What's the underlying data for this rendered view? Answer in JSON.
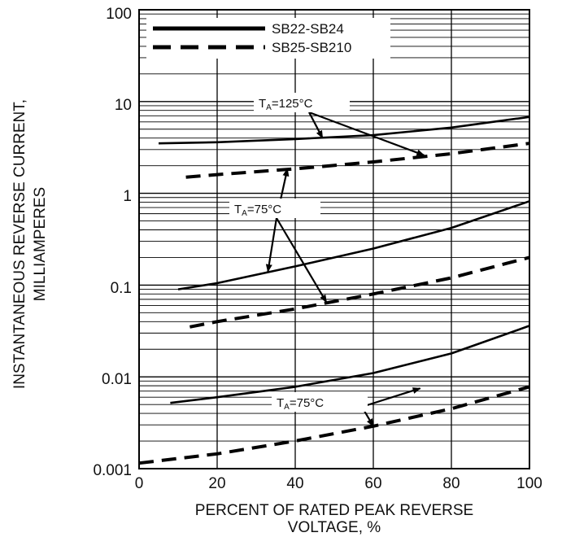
{
  "chart_data": {
    "type": "line",
    "title": "",
    "xlabel_line1": "PERCENT OF RATED PEAK REVERSE",
    "xlabel_line2": "VOLTAGE, %",
    "ylabel_line1": "INSTANTANEOUS REVERSE CURRENT,",
    "ylabel_line2": "MILLIAMPERES",
    "xlim": [
      0,
      100
    ],
    "ylim": [
      0.001,
      100
    ],
    "y_scale": "log",
    "grid": true,
    "legend_position": "top-left",
    "x_ticks": [
      "0",
      "20",
      "40",
      "60",
      "80",
      "100"
    ],
    "y_ticks": [
      "0.001",
      "0.01",
      "0.1",
      "1",
      "10",
      "100"
    ],
    "legend": [
      {
        "label": "SB22-SB24",
        "style": "solid"
      },
      {
        "label": "SB25-SB210",
        "style": "dashed"
      }
    ],
    "series": [
      {
        "name": "SB22-SB24",
        "style": "solid",
        "x": [
          5,
          20,
          40,
          60,
          80,
          100
        ],
        "y": [
          3.5,
          3.6,
          3.9,
          4.3,
          5.2,
          6.8
        ]
      },
      {
        "name": "SB25-SB210",
        "style": "dashed",
        "x": [
          12,
          20,
          40,
          60,
          80,
          100
        ],
        "y": [
          1.5,
          1.6,
          1.85,
          2.2,
          2.7,
          3.5
        ]
      },
      {
        "name": "SB22-SB24",
        "style": "solid",
        "x": [
          10,
          20,
          40,
          60,
          80,
          100
        ],
        "y": [
          0.09,
          0.105,
          0.16,
          0.25,
          0.42,
          0.82
        ]
      },
      {
        "name": "SB25-SB210",
        "style": "dashed",
        "x": [
          13,
          20,
          40,
          60,
          80,
          100
        ],
        "y": [
          0.035,
          0.04,
          0.055,
          0.08,
          0.12,
          0.2
        ]
      },
      {
        "name": "SB22-SB24",
        "style": "solid",
        "x": [
          8,
          20,
          40,
          60,
          80,
          100
        ],
        "y": [
          0.0052,
          0.006,
          0.0078,
          0.011,
          0.018,
          0.036
        ]
      },
      {
        "name": "SB25-SB210",
        "style": "dashed",
        "x": [
          0,
          20,
          40,
          60,
          80,
          100
        ],
        "y": [
          0.00115,
          0.00145,
          0.002,
          0.0029,
          0.0045,
          0.0078
        ]
      }
    ],
    "annotations": [
      {
        "text_main": "T",
        "text_sub": "A",
        "text_rest": "=125°C",
        "pointers": [
          {
            "x": 47,
            "y": 4.0
          },
          {
            "x": 73,
            "y": 2.6
          }
        ]
      },
      {
        "text_main": "T",
        "text_sub": "A",
        "text_rest": "=75°C",
        "pointers": [
          {
            "x": 38,
            "y": 1.85
          },
          {
            "x": 33,
            "y": 0.14
          },
          {
            "x": 48,
            "y": 0.065
          }
        ]
      },
      {
        "text_main": "T",
        "text_sub": "A",
        "text_rest": "=75°C",
        "pointers": [
          {
            "x": 60,
            "y": 0.0029
          },
          {
            "x": 72,
            "y": 0.0075
          }
        ]
      }
    ]
  }
}
